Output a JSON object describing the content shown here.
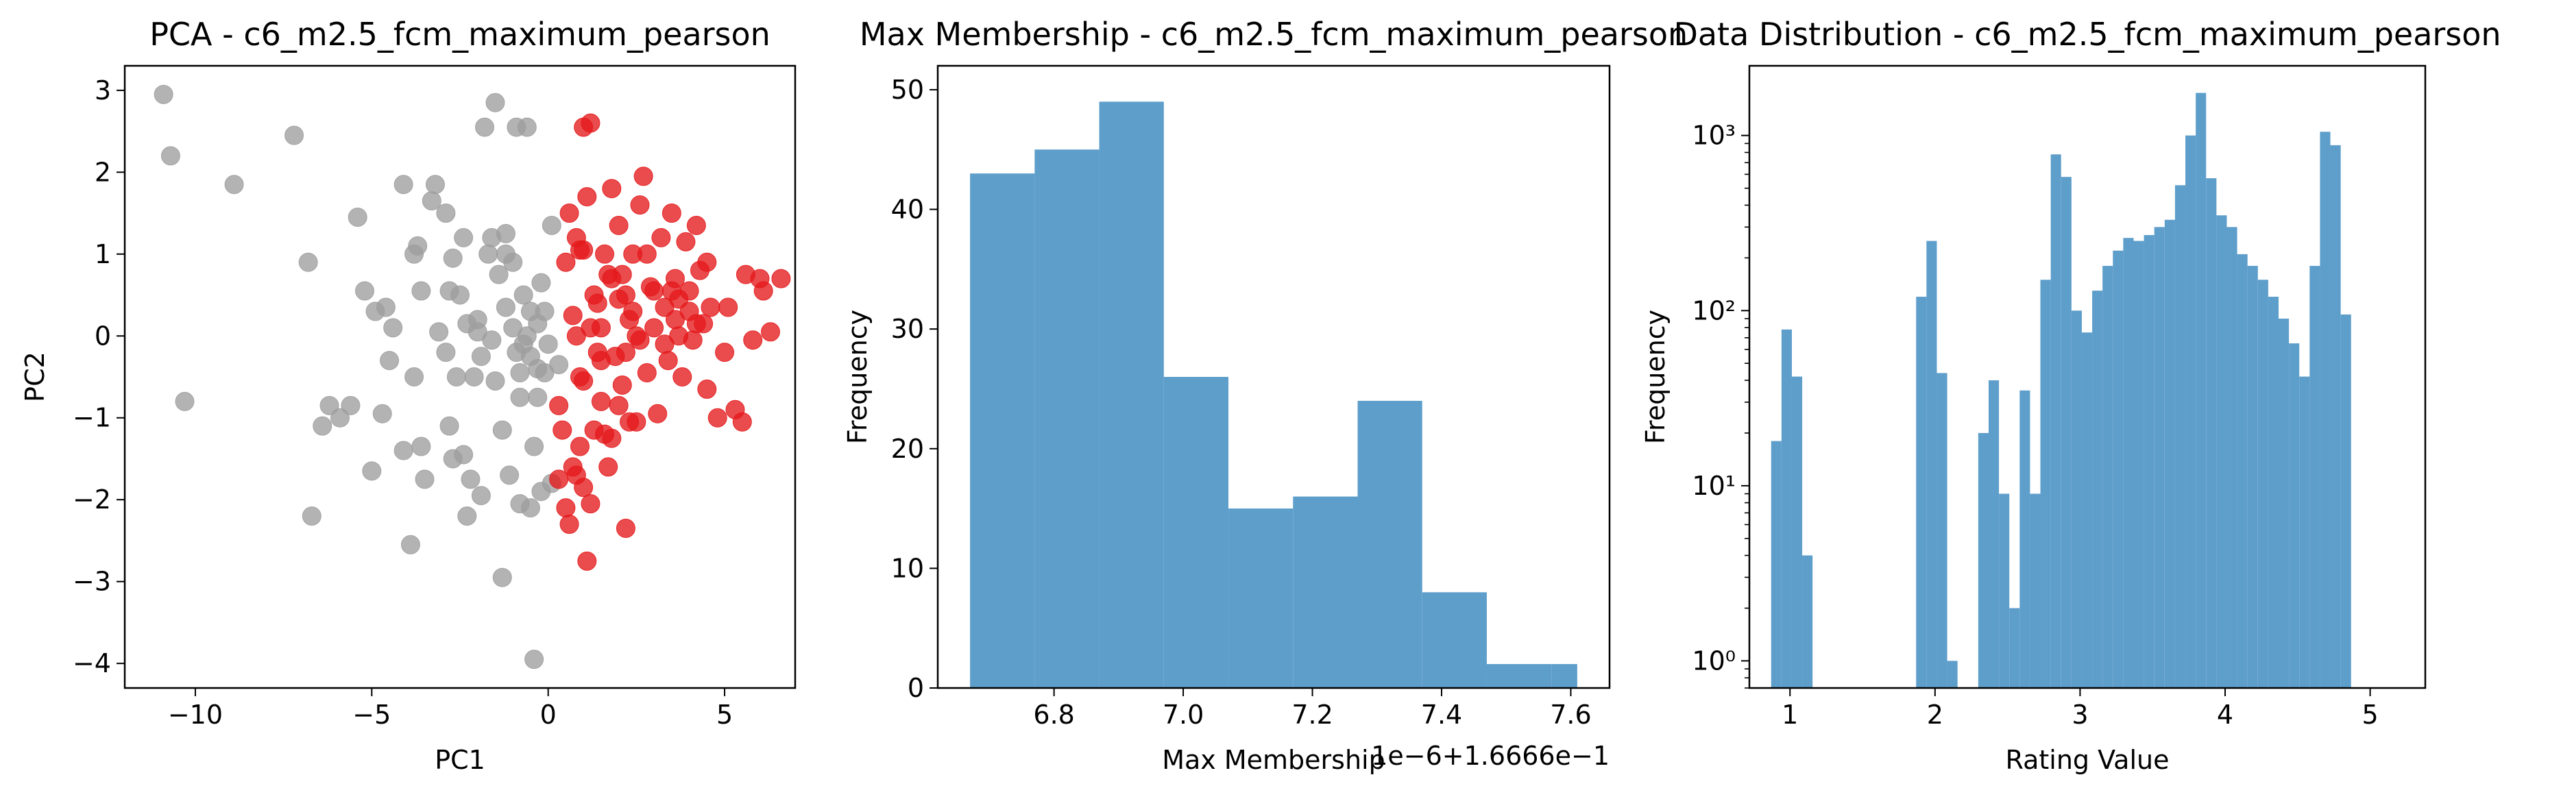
{
  "figure": {
    "background": "#ffffff"
  },
  "chart_data": [
    {
      "type": "scatter",
      "title": "PCA - c6_m2.5_fcm_maximum_pearson",
      "xlabel": "PC1",
      "ylabel": "PC2",
      "xlim": [
        -12,
        7
      ],
      "ylim": [
        -4.3,
        3.3
      ],
      "xticks": [
        -10,
        -5,
        0,
        5
      ],
      "xtick_labels": [
        "−10",
        "−5",
        "0",
        "5"
      ],
      "yticks": [
        -4,
        -3,
        -2,
        -1,
        0,
        1,
        2,
        3
      ],
      "ytick_labels": [
        "−4",
        "−3",
        "−2",
        "−1",
        "0",
        "1",
        "2",
        "3"
      ],
      "grid": false,
      "series": [
        {
          "color": "#9e9e9e",
          "points": [
            [
              -10.9,
              2.95
            ],
            [
              -10.7,
              2.2
            ],
            [
              -8.9,
              1.85
            ],
            [
              -7.2,
              2.45
            ],
            [
              -6.8,
              0.9
            ],
            [
              -10.3,
              -0.8
            ],
            [
              -6.7,
              -2.2
            ],
            [
              -6.4,
              -1.1
            ],
            [
              -6.2,
              -0.85
            ],
            [
              -5.9,
              -1.0
            ],
            [
              -5.6,
              -0.85
            ],
            [
              -5.4,
              1.45
            ],
            [
              -5.2,
              0.55
            ],
            [
              -5.0,
              -1.65
            ],
            [
              -4.9,
              0.3
            ],
            [
              -4.6,
              0.35
            ],
            [
              -4.7,
              -0.95
            ],
            [
              -4.4,
              0.1
            ],
            [
              -4.5,
              -0.3
            ],
            [
              -4.1,
              -1.4
            ],
            [
              -3.9,
              -2.55
            ],
            [
              -4.1,
              1.85
            ],
            [
              -3.8,
              1.0
            ],
            [
              -3.7,
              1.1
            ],
            [
              -3.8,
              -0.5
            ],
            [
              -3.6,
              0.55
            ],
            [
              -3.5,
              -1.75
            ],
            [
              -3.3,
              1.65
            ],
            [
              -3.2,
              1.85
            ],
            [
              -3.1,
              0.05
            ],
            [
              -2.9,
              1.5
            ],
            [
              -2.9,
              -0.2
            ],
            [
              -2.8,
              -1.1
            ],
            [
              -2.7,
              0.95
            ],
            [
              -2.6,
              -0.5
            ],
            [
              -2.5,
              0.5
            ],
            [
              -2.4,
              -1.45
            ],
            [
              -2.3,
              -2.2
            ],
            [
              -2.2,
              -1.75
            ],
            [
              -2.1,
              -0.5
            ],
            [
              -2.0,
              0.2
            ],
            [
              -1.9,
              -0.25
            ],
            [
              -1.9,
              -1.95
            ],
            [
              -1.8,
              2.55
            ],
            [
              -1.6,
              1.2
            ],
            [
              -1.5,
              -0.55
            ],
            [
              -1.4,
              0.75
            ],
            [
              -1.3,
              -1.15
            ],
            [
              -1.2,
              1.25
            ],
            [
              -1.1,
              -1.7
            ],
            [
              -1.0,
              0.9
            ],
            [
              -0.9,
              -0.2
            ],
            [
              -0.8,
              -0.75
            ],
            [
              -0.7,
              0.5
            ],
            [
              -0.6,
              0.0
            ],
            [
              -0.5,
              -0.25
            ],
            [
              -0.4,
              -1.35
            ],
            [
              -0.3,
              -0.75
            ],
            [
              -0.2,
              0.65
            ],
            [
              -0.1,
              -0.45
            ],
            [
              0.0,
              -0.1
            ],
            [
              0.1,
              -1.8
            ],
            [
              -0.6,
              2.55
            ],
            [
              -1.5,
              2.85
            ],
            [
              -0.9,
              2.55
            ],
            [
              -0.4,
              -3.95
            ],
            [
              -1.3,
              -2.95
            ],
            [
              -0.8,
              -2.05
            ],
            [
              -0.2,
              -1.9
            ],
            [
              -0.5,
              -2.1
            ],
            [
              0.1,
              1.35
            ],
            [
              -0.3,
              0.15
            ],
            [
              -2.3,
              0.15
            ],
            [
              -1.7,
              1.0
            ],
            [
              -1.2,
              1.0
            ],
            [
              -0.7,
              -0.1
            ],
            [
              -3.6,
              -1.35
            ],
            [
              -2.4,
              1.2
            ],
            [
              -2.8,
              0.55
            ],
            [
              -1.6,
              -0.05
            ],
            [
              -1.0,
              0.1
            ],
            [
              -1.2,
              0.35
            ],
            [
              -0.5,
              0.3
            ],
            [
              0.3,
              -0.35
            ],
            [
              -2.0,
              0.05
            ],
            [
              -0.3,
              -0.4
            ],
            [
              -0.8,
              -0.45
            ],
            [
              -0.1,
              0.3
            ],
            [
              -2.7,
              -1.5
            ]
          ]
        },
        {
          "color": "#e41a1c",
          "points": [
            [
              0.5,
              0.9
            ],
            [
              0.6,
              1.5
            ],
            [
              0.8,
              1.2
            ],
            [
              0.9,
              1.05
            ],
            [
              1.0,
              2.55
            ],
            [
              1.2,
              2.6
            ],
            [
              1.1,
              1.7
            ],
            [
              1.3,
              0.5
            ],
            [
              1.5,
              0.1
            ],
            [
              1.6,
              1.0
            ],
            [
              1.7,
              0.75
            ],
            [
              1.8,
              1.8
            ],
            [
              1.9,
              -0.25
            ],
            [
              2.0,
              1.35
            ],
            [
              2.1,
              -0.6
            ],
            [
              2.2,
              0.5
            ],
            [
              2.3,
              0.2
            ],
            [
              2.4,
              1.0
            ],
            [
              2.5,
              -1.05
            ],
            [
              2.6,
              1.6
            ],
            [
              2.7,
              1.95
            ],
            [
              2.8,
              -0.45
            ],
            [
              2.9,
              0.6
            ],
            [
              3.0,
              0.1
            ],
            [
              3.1,
              -0.95
            ],
            [
              3.2,
              1.2
            ],
            [
              3.3,
              0.35
            ],
            [
              3.4,
              -0.3
            ],
            [
              3.5,
              1.5
            ],
            [
              3.6,
              0.7
            ],
            [
              3.7,
              0.0
            ],
            [
              3.8,
              -0.5
            ],
            [
              3.9,
              1.15
            ],
            [
              4.0,
              0.3
            ],
            [
              4.1,
              -0.05
            ],
            [
              4.2,
              1.35
            ],
            [
              4.3,
              0.8
            ],
            [
              4.4,
              0.15
            ],
            [
              4.5,
              -0.65
            ],
            [
              4.6,
              0.35
            ],
            [
              4.8,
              -1.0
            ],
            [
              5.0,
              -0.2
            ],
            [
              5.1,
              0.35
            ],
            [
              5.3,
              -0.9
            ],
            [
              5.5,
              -1.05
            ],
            [
              5.6,
              0.75
            ],
            [
              5.8,
              -0.05
            ],
            [
              6.0,
              0.7
            ],
            [
              6.3,
              0.05
            ],
            [
              6.6,
              0.7
            ],
            [
              6.1,
              0.55
            ],
            [
              0.3,
              -0.85
            ],
            [
              0.4,
              -1.15
            ],
            [
              0.5,
              -2.1
            ],
            [
              0.6,
              -2.3
            ],
            [
              0.7,
              -1.6
            ],
            [
              0.8,
              -1.7
            ],
            [
              0.9,
              -1.35
            ],
            [
              1.0,
              -1.85
            ],
            [
              1.1,
              -2.75
            ],
            [
              1.2,
              -2.05
            ],
            [
              1.3,
              -1.15
            ],
            [
              1.4,
              -0.2
            ],
            [
              1.6,
              -1.2
            ],
            [
              1.7,
              -1.6
            ],
            [
              1.8,
              -1.25
            ],
            [
              2.0,
              -0.85
            ],
            [
              2.2,
              -2.35
            ],
            [
              2.3,
              -1.05
            ],
            [
              0.3,
              -1.75
            ],
            [
              0.9,
              -0.5
            ],
            [
              1.0,
              -0.55
            ],
            [
              1.4,
              0.4
            ],
            [
              1.5,
              -0.3
            ],
            [
              0.7,
              0.25
            ],
            [
              0.8,
              0.0
            ],
            [
              1.2,
              0.1
            ],
            [
              1.8,
              0.7
            ],
            [
              2.1,
              0.75
            ],
            [
              2.4,
              0.3
            ],
            [
              2.6,
              -0.05
            ],
            [
              2.8,
              1.0
            ],
            [
              3.0,
              0.55
            ],
            [
              3.3,
              -0.1
            ],
            [
              3.5,
              0.55
            ],
            [
              3.7,
              0.45
            ],
            [
              4.0,
              0.55
            ],
            [
              4.2,
              0.15
            ],
            [
              1.0,
              1.05
            ],
            [
              2.0,
              0.45
            ],
            [
              2.5,
              0.0
            ],
            [
              3.6,
              0.2
            ],
            [
              4.5,
              0.9
            ],
            [
              1.5,
              -0.8
            ],
            [
              2.2,
              -0.2
            ]
          ]
        }
      ]
    },
    {
      "type": "bar",
      "title": "Max Membership - c6_m2.5_fcm_maximum_pearson",
      "xlabel": "Max Membership",
      "ylabel": "Frequency",
      "offset_text": "1e−6+1.6666e−1",
      "xlim": [
        6.62,
        7.66
      ],
      "ylim": [
        0,
        52
      ],
      "xticks": [
        6.8,
        7.0,
        7.2,
        7.4,
        7.6
      ],
      "xtick_labels": [
        "6.8",
        "7.0",
        "7.2",
        "7.4",
        "7.6"
      ],
      "yticks": [
        0,
        10,
        20,
        30,
        40,
        50
      ],
      "ytick_labels": [
        "0",
        "10",
        "20",
        "30",
        "40",
        "50"
      ],
      "grid": false,
      "color": "#5e9ecb",
      "bin_edges": [
        6.67,
        6.77,
        6.87,
        6.97,
        7.07,
        7.17,
        7.27,
        7.37,
        7.47,
        7.57,
        7.61
      ],
      "values": [
        43,
        45,
        49,
        26,
        15,
        16,
        24,
        8,
        2,
        2
      ]
    },
    {
      "type": "bar",
      "title": "Data Distribution - c6_m2.5_fcm_maximum_pearson",
      "xlabel": "Rating Value",
      "ylabel": "Frequency",
      "yscale": "log",
      "xlim": [
        0.72,
        5.38
      ],
      "ylim": [
        0.7,
        2500
      ],
      "xticks": [
        1,
        2,
        3,
        4,
        5
      ],
      "xtick_labels": [
        "1",
        "2",
        "3",
        "4",
        "5"
      ],
      "yticks": [
        1,
        10,
        100,
        1000
      ],
      "ytick_labels": [
        "10⁰",
        "10¹",
        "10²",
        "10³"
      ],
      "grid": false,
      "color": "#5e9ecb",
      "bin_start": 0.87,
      "bin_width": 0.0714,
      "values": [
        18,
        78,
        42,
        4,
        0,
        0,
        0,
        0,
        0,
        0,
        0,
        0,
        0,
        0,
        120,
        250,
        44,
        1,
        0,
        0,
        20,
        40,
        9,
        2,
        35,
        9,
        150,
        780,
        580,
        100,
        75,
        130,
        180,
        220,
        260,
        250,
        270,
        300,
        330,
        520,
        1000,
        1750,
        570,
        350,
        300,
        210,
        180,
        150,
        120,
        90,
        65,
        42,
        180,
        1050,
        880,
        95
      ]
    }
  ]
}
